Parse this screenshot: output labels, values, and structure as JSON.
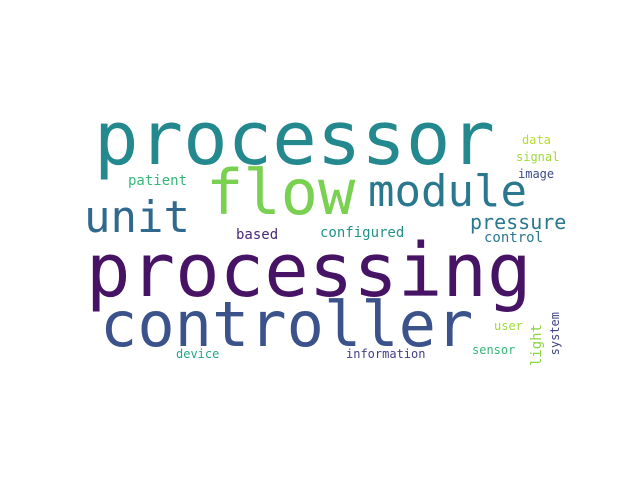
{
  "words": {
    "processor": {
      "text": "processor",
      "color": "#23898e"
    },
    "processing": {
      "text": "processing",
      "color": "#471365"
    },
    "controller": {
      "text": "controller",
      "color": "#3b528b"
    },
    "flow": {
      "text": "flow",
      "color": "#7ad151"
    },
    "module": {
      "text": "module",
      "color": "#2a788e"
    },
    "unit": {
      "text": "unit",
      "color": "#31688e"
    },
    "pressure": {
      "text": "pressure",
      "color": "#2a788e"
    },
    "patient": {
      "text": "patient",
      "color": "#35b779"
    },
    "based": {
      "text": "based",
      "color": "#482878"
    },
    "configured": {
      "text": "configured",
      "color": "#21918c"
    },
    "control": {
      "text": "control",
      "color": "#2a788e"
    },
    "data": {
      "text": "data",
      "color": "#b5de2b"
    },
    "signal": {
      "text": "signal",
      "color": "#9fda3a"
    },
    "image": {
      "text": "image",
      "color": "#3e4a89"
    },
    "user": {
      "text": "user",
      "color": "#a0da39"
    },
    "light": {
      "text": "light",
      "color": "#8bd646"
    },
    "system": {
      "text": "system",
      "color": "#414487"
    },
    "device": {
      "text": "device",
      "color": "#22a884"
    },
    "information": {
      "text": "information",
      "color": "#433e85"
    },
    "sensor": {
      "text": "sensor",
      "color": "#35b779"
    }
  }
}
